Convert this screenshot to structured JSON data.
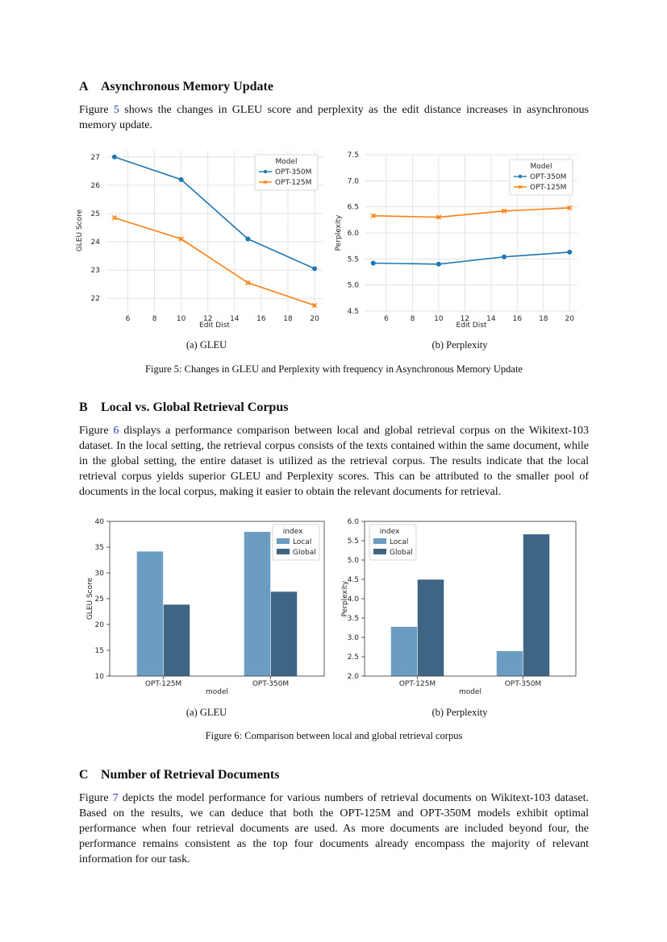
{
  "sections": [
    {
      "num": "A",
      "title": "Asynchronous Memory Update"
    },
    {
      "num": "B",
      "title": "Local vs. Global Retrieval Corpus"
    },
    {
      "num": "C",
      "title": "Number of Retrieval Documents"
    }
  ],
  "paragraphs": [
    {
      "pre": "Figure ",
      "ref": "5",
      "post": " shows the changes in GLEU score and perplexity as the edit distance increases in asynchronous memory update."
    },
    {
      "pre": "Figure ",
      "ref": "6",
      "post": " displays a performance comparison between local and global retrieval corpus on the Wikitext-103 dataset. In the local setting, the retrieval corpus consists of the texts contained within the same document, while in the global setting, the entire dataset is utilized as the retrieval corpus. The results indicate that the local retrieval corpus yields superior GLEU and Perplexity scores. This can be attributed to the smaller pool of documents in the local corpus, making it easier to obtain the relevant documents for retrieval."
    },
    {
      "pre": "Figure ",
      "ref": "7",
      "post": " depicts the model performance for various numbers of retrieval documents on Wikitext-103 dataset. Based on the results, we can deduce that both the OPT-125M and OPT-350M models exhibit optimal performance when four retrieval documents are used. As more documents are included beyond four, the performance remains consistent as the top four documents already encompass the majority of relevant information for our task."
    }
  ],
  "figure5": {
    "subcaption_a": "(a) GLEU",
    "subcaption_b": "(b) Perplexity",
    "caption": "Figure 5: Changes in GLEU and Perplexity with frequency in Asynchronous Memory Update"
  },
  "figure6": {
    "subcaption_a": "(a) GLEU",
    "subcaption_b": "(b) Perplexity",
    "caption": "Figure 6: Comparison between local and global retrieval corpus"
  },
  "colors": {
    "blue": "#1f77b4",
    "orange": "#ff7f0e",
    "local": "#6b9dc2",
    "global": "#3f6585"
  },
  "chart_data": [
    {
      "type": "line",
      "xlabel": "Edit Dist",
      "ylabel": "GLEU Score",
      "legend_title": "Model",
      "legend_position": "top-right",
      "grid": true,
      "xlim": [
        4.4,
        20.6
      ],
      "ylim": [
        21.55,
        27.25
      ],
      "xticks": [
        6,
        8,
        10,
        12,
        14,
        16,
        18,
        20
      ],
      "yticks": [
        22,
        23,
        24,
        25,
        26,
        27
      ],
      "x": [
        5,
        10,
        15,
        20
      ],
      "series": [
        {
          "name": "OPT-350M",
          "values": [
            27.0,
            26.2,
            24.1,
            23.05
          ],
          "marker": "circle",
          "color": "#1f77b4"
        },
        {
          "name": "OPT-125M",
          "values": [
            24.85,
            24.1,
            22.55,
            21.75
          ],
          "marker": "x",
          "color": "#ff7f0e"
        }
      ]
    },
    {
      "type": "line",
      "xlabel": "Edit Dist",
      "ylabel": "Perplexity",
      "legend_title": "Model",
      "legend_position": "top-right",
      "grid": true,
      "xlim": [
        4.4,
        20.6
      ],
      "ylim": [
        4.5,
        7.5
      ],
      "xticks": [
        6,
        8,
        10,
        12,
        14,
        16,
        18,
        20
      ],
      "yticks": [
        4.5,
        5.0,
        5.5,
        6.0,
        6.5,
        7.0,
        7.5
      ],
      "x": [
        5,
        10,
        15,
        20
      ],
      "series": [
        {
          "name": "OPT-350M",
          "values": [
            5.42,
            5.4,
            5.54,
            5.63
          ],
          "marker": "circle",
          "color": "#1f77b4"
        },
        {
          "name": "OPT-125M",
          "values": [
            6.33,
            6.3,
            6.42,
            6.48
          ],
          "marker": "x",
          "color": "#ff7f0e"
        }
      ]
    },
    {
      "type": "bar",
      "xlabel": "model",
      "ylabel": "GLEU Score",
      "legend_title": "index",
      "legend_position": "top-right",
      "grid": false,
      "ylim": [
        10,
        40
      ],
      "yticks": [
        10,
        15,
        20,
        25,
        30,
        35,
        40
      ],
      "categories": [
        "OPT-125M",
        "OPT-350M"
      ],
      "series": [
        {
          "name": "Local",
          "values": [
            34.2,
            38.0
          ],
          "color": "#6b9dc2"
        },
        {
          "name": "Global",
          "values": [
            23.9,
            26.4
          ],
          "color": "#3f6585"
        }
      ]
    },
    {
      "type": "bar",
      "xlabel": "model",
      "ylabel": "Perplexity",
      "legend_title": "index",
      "legend_position": "top-left",
      "grid": false,
      "ylim": [
        2.0,
        6.0
      ],
      "yticks": [
        2.0,
        2.5,
        3.0,
        3.5,
        4.0,
        4.5,
        5.0,
        5.5,
        6.0
      ],
      "categories": [
        "OPT-125M",
        "OPT-350M"
      ],
      "series": [
        {
          "name": "Local",
          "values": [
            3.28,
            2.65
          ],
          "color": "#6b9dc2"
        },
        {
          "name": "Global",
          "values": [
            4.5,
            5.67
          ],
          "color": "#3f6585"
        }
      ]
    }
  ]
}
